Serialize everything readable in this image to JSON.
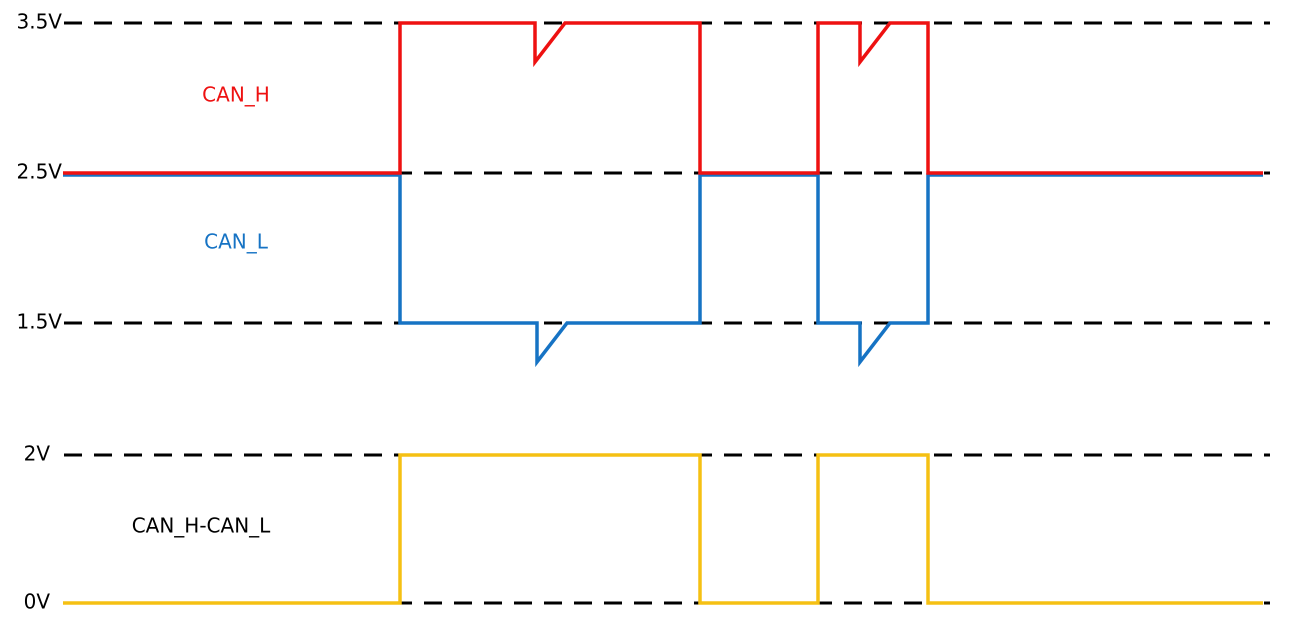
{
  "levels": [
    "3.5V",
    "2.5V",
    "1.5V",
    "2V",
    "0V"
  ],
  "signals": [
    "CAN_H",
    "CAN_L",
    "CAN_H-CAN_L"
  ]
}
